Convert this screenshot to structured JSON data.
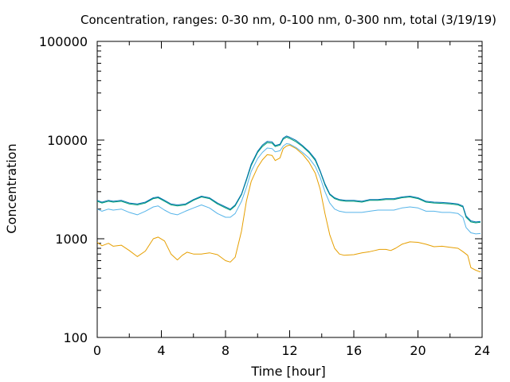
{
  "chart_data": {
    "type": "line",
    "title": "Concentration, ranges: 0-30 nm, 0-100 nm, 0-300 nm, total (3/19/19)",
    "xlabel": "Time [hour]",
    "ylabel": "Concentration",
    "xlim": [
      0,
      24
    ],
    "ylim": [
      100,
      100000
    ],
    "yscale": "log",
    "grid": false,
    "legend": "none",
    "x_ticks": [
      "0",
      "4",
      "8",
      "12",
      "16",
      "20",
      "24"
    ],
    "x_tick_values": [
      0,
      4,
      8,
      12,
      16,
      20,
      24
    ],
    "y_ticks": [
      "100",
      "1000",
      "10000",
      "100000"
    ],
    "y_tick_values": [
      100,
      1000,
      10000,
      100000
    ],
    "series": [
      {
        "color": "#e69f00",
        "points": [
          [
            0,
            920
          ],
          [
            0.3,
            850
          ],
          [
            0.7,
            900
          ],
          [
            1.0,
            840
          ],
          [
            1.5,
            860
          ],
          [
            2.0,
            760
          ],
          [
            2.5,
            660
          ],
          [
            3.0,
            750
          ],
          [
            3.5,
            1000
          ],
          [
            3.8,
            1040
          ],
          [
            4.2,
            950
          ],
          [
            4.6,
            700
          ],
          [
            5.0,
            610
          ],
          [
            5.3,
            680
          ],
          [
            5.6,
            730
          ],
          [
            6.0,
            700
          ],
          [
            6.5,
            700
          ],
          [
            7.0,
            720
          ],
          [
            7.5,
            690
          ],
          [
            8.0,
            600
          ],
          [
            8.3,
            580
          ],
          [
            8.6,
            650
          ],
          [
            9.0,
            1200
          ],
          [
            9.3,
            2400
          ],
          [
            9.6,
            3800
          ],
          [
            10.0,
            5300
          ],
          [
            10.3,
            6300
          ],
          [
            10.6,
            7100
          ],
          [
            10.9,
            7000
          ],
          [
            11.1,
            6200
          ],
          [
            11.4,
            6600
          ],
          [
            11.6,
            8200
          ],
          [
            11.8,
            8700
          ],
          [
            12.0,
            8900
          ],
          [
            12.4,
            8200
          ],
          [
            12.8,
            7200
          ],
          [
            13.2,
            6000
          ],
          [
            13.6,
            4600
          ],
          [
            13.9,
            3200
          ],
          [
            14.2,
            1800
          ],
          [
            14.5,
            1100
          ],
          [
            14.8,
            800
          ],
          [
            15.1,
            700
          ],
          [
            15.4,
            680
          ],
          [
            16.0,
            690
          ],
          [
            16.5,
            720
          ],
          [
            17.0,
            740
          ],
          [
            17.3,
            760
          ],
          [
            17.6,
            780
          ],
          [
            18.0,
            780
          ],
          [
            18.3,
            760
          ],
          [
            18.6,
            800
          ],
          [
            19.0,
            880
          ],
          [
            19.5,
            930
          ],
          [
            20.0,
            920
          ],
          [
            20.5,
            880
          ],
          [
            21.0,
            830
          ],
          [
            21.5,
            840
          ],
          [
            22.0,
            820
          ],
          [
            22.5,
            800
          ],
          [
            22.8,
            740
          ],
          [
            23.1,
            680
          ],
          [
            23.3,
            510
          ],
          [
            23.6,
            480
          ],
          [
            23.9,
            460
          ]
        ]
      },
      {
        "color": "#56b4e9",
        "points": [
          [
            0,
            2000
          ],
          [
            0.3,
            1900
          ],
          [
            0.7,
            2000
          ],
          [
            1.0,
            1950
          ],
          [
            1.5,
            2000
          ],
          [
            2.0,
            1850
          ],
          [
            2.5,
            1750
          ],
          [
            3.0,
            1900
          ],
          [
            3.5,
            2100
          ],
          [
            3.8,
            2150
          ],
          [
            4.2,
            1950
          ],
          [
            4.6,
            1800
          ],
          [
            5.0,
            1750
          ],
          [
            5.5,
            1900
          ],
          [
            6.0,
            2050
          ],
          [
            6.5,
            2200
          ],
          [
            7.0,
            2050
          ],
          [
            7.5,
            1800
          ],
          [
            8.0,
            1650
          ],
          [
            8.3,
            1650
          ],
          [
            8.6,
            1800
          ],
          [
            9.0,
            2400
          ],
          [
            9.3,
            3300
          ],
          [
            9.6,
            4800
          ],
          [
            10.0,
            6500
          ],
          [
            10.3,
            7500
          ],
          [
            10.6,
            8300
          ],
          [
            10.9,
            8200
          ],
          [
            11.1,
            7600
          ],
          [
            11.4,
            7800
          ],
          [
            11.6,
            8700
          ],
          [
            11.8,
            9200
          ],
          [
            12.0,
            9100
          ],
          [
            12.4,
            8400
          ],
          [
            12.8,
            7500
          ],
          [
            13.2,
            6600
          ],
          [
            13.6,
            5400
          ],
          [
            13.9,
            4200
          ],
          [
            14.2,
            3000
          ],
          [
            14.5,
            2300
          ],
          [
            14.8,
            2000
          ],
          [
            15.1,
            1900
          ],
          [
            15.5,
            1850
          ],
          [
            16.0,
            1850
          ],
          [
            16.5,
            1850
          ],
          [
            17.0,
            1900
          ],
          [
            17.5,
            1950
          ],
          [
            18.0,
            1950
          ],
          [
            18.5,
            1950
          ],
          [
            19.0,
            2050
          ],
          [
            19.5,
            2100
          ],
          [
            20.0,
            2050
          ],
          [
            20.5,
            1900
          ],
          [
            21.0,
            1900
          ],
          [
            21.5,
            1850
          ],
          [
            22.0,
            1850
          ],
          [
            22.5,
            1800
          ],
          [
            22.8,
            1650
          ],
          [
            23.0,
            1300
          ],
          [
            23.3,
            1150
          ],
          [
            23.6,
            1120
          ],
          [
            23.9,
            1130
          ]
        ]
      },
      {
        "color": "#009e73",
        "points": [
          [
            0,
            2400
          ],
          [
            0.3,
            2300
          ],
          [
            0.7,
            2400
          ],
          [
            1.0,
            2350
          ],
          [
            1.5,
            2400
          ],
          [
            2.0,
            2250
          ],
          [
            2.5,
            2200
          ],
          [
            3.0,
            2300
          ],
          [
            3.5,
            2550
          ],
          [
            3.8,
            2600
          ],
          [
            4.2,
            2400
          ],
          [
            4.6,
            2200
          ],
          [
            5.0,
            2150
          ],
          [
            5.5,
            2200
          ],
          [
            6.0,
            2450
          ],
          [
            6.5,
            2650
          ],
          [
            7.0,
            2550
          ],
          [
            7.5,
            2250
          ],
          [
            8.0,
            2050
          ],
          [
            8.3,
            1950
          ],
          [
            8.6,
            2150
          ],
          [
            9.0,
            2800
          ],
          [
            9.3,
            3900
          ],
          [
            9.6,
            5500
          ],
          [
            10.0,
            7500
          ],
          [
            10.3,
            8600
          ],
          [
            10.6,
            9400
          ],
          [
            10.9,
            9300
          ],
          [
            11.1,
            8600
          ],
          [
            11.4,
            8900
          ],
          [
            11.6,
            10200
          ],
          [
            11.8,
            10700
          ],
          [
            12.0,
            10400
          ],
          [
            12.4,
            9600
          ],
          [
            12.8,
            8600
          ],
          [
            13.2,
            7500
          ],
          [
            13.6,
            6200
          ],
          [
            13.9,
            4800
          ],
          [
            14.2,
            3500
          ],
          [
            14.5,
            2800
          ],
          [
            14.8,
            2550
          ],
          [
            15.1,
            2450
          ],
          [
            15.5,
            2400
          ],
          [
            16.0,
            2400
          ],
          [
            16.5,
            2350
          ],
          [
            17.0,
            2450
          ],
          [
            17.5,
            2450
          ],
          [
            18.0,
            2500
          ],
          [
            18.5,
            2500
          ],
          [
            19.0,
            2600
          ],
          [
            19.5,
            2650
          ],
          [
            20.0,
            2550
          ],
          [
            20.5,
            2350
          ],
          [
            21.0,
            2300
          ],
          [
            21.5,
            2280
          ],
          [
            22.0,
            2250
          ],
          [
            22.5,
            2200
          ],
          [
            22.8,
            2100
          ],
          [
            23.0,
            1650
          ],
          [
            23.3,
            1480
          ],
          [
            23.6,
            1450
          ],
          [
            23.9,
            1470
          ]
        ]
      },
      {
        "color": "#0072b2",
        "points": [
          [
            0,
            2450
          ],
          [
            0.3,
            2350
          ],
          [
            0.7,
            2450
          ],
          [
            1.0,
            2400
          ],
          [
            1.5,
            2450
          ],
          [
            2.0,
            2300
          ],
          [
            2.5,
            2250
          ],
          [
            3.0,
            2350
          ],
          [
            3.5,
            2600
          ],
          [
            3.8,
            2650
          ],
          [
            4.2,
            2450
          ],
          [
            4.6,
            2250
          ],
          [
            5.0,
            2200
          ],
          [
            5.5,
            2250
          ],
          [
            6.0,
            2500
          ],
          [
            6.5,
            2700
          ],
          [
            7.0,
            2600
          ],
          [
            7.5,
            2300
          ],
          [
            8.0,
            2100
          ],
          [
            8.3,
            2000
          ],
          [
            8.6,
            2200
          ],
          [
            9.0,
            2850
          ],
          [
            9.3,
            4000
          ],
          [
            9.6,
            5700
          ],
          [
            10.0,
            7700
          ],
          [
            10.3,
            8900
          ],
          [
            10.6,
            9700
          ],
          [
            10.9,
            9600
          ],
          [
            11.1,
            8800
          ],
          [
            11.4,
            9100
          ],
          [
            11.6,
            10500
          ],
          [
            11.8,
            11000
          ],
          [
            12.0,
            10700
          ],
          [
            12.4,
            9900
          ],
          [
            12.8,
            8800
          ],
          [
            13.2,
            7700
          ],
          [
            13.6,
            6400
          ],
          [
            13.9,
            4900
          ],
          [
            14.2,
            3600
          ],
          [
            14.5,
            2850
          ],
          [
            14.8,
            2600
          ],
          [
            15.1,
            2500
          ],
          [
            15.5,
            2450
          ],
          [
            16.0,
            2450
          ],
          [
            16.5,
            2400
          ],
          [
            17.0,
            2500
          ],
          [
            17.5,
            2500
          ],
          [
            18.0,
            2550
          ],
          [
            18.5,
            2550
          ],
          [
            19.0,
            2650
          ],
          [
            19.5,
            2700
          ],
          [
            20.0,
            2600
          ],
          [
            20.5,
            2400
          ],
          [
            21.0,
            2350
          ],
          [
            21.5,
            2330
          ],
          [
            22.0,
            2300
          ],
          [
            22.5,
            2250
          ],
          [
            22.8,
            2150
          ],
          [
            23.0,
            1700
          ],
          [
            23.3,
            1520
          ],
          [
            23.6,
            1480
          ],
          [
            23.9,
            1500
          ]
        ]
      }
    ]
  }
}
